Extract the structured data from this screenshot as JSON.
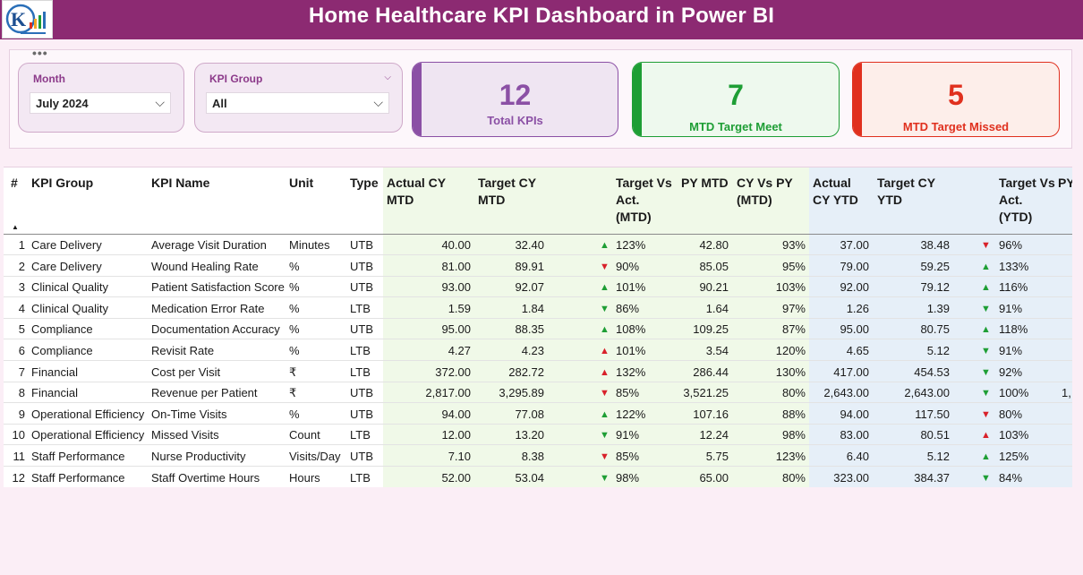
{
  "header": {
    "title": "Home Healthcare KPI Dashboard in Power BI"
  },
  "filters": {
    "month": {
      "label": "Month",
      "value": "July 2024"
    },
    "kpi_group": {
      "label": "KPI Group",
      "value": "All"
    }
  },
  "cards": [
    {
      "value": "12",
      "label": "Total KPIs",
      "color": "#8b50a5",
      "bg": "#efe5f2"
    },
    {
      "value": "7",
      "label": "MTD Target Meet",
      "color": "#1e9e35",
      "bg": "#eef9ee"
    },
    {
      "value": "5",
      "label": "MTD Target Missed",
      "color": "#e0301e",
      "bg": "#fdeeea"
    }
  ],
  "table": {
    "columns": {
      "num": "#",
      "group": "KPI Group",
      "name": "KPI Name",
      "unit": "Unit",
      "type": "Type",
      "act_mtd": "Actual CY MTD",
      "tgt_mtd": "Target CY MTD",
      "tva_mtd": "Target Vs Act. (MTD)",
      "py_mtd": "PY MTD",
      "cvp_mtd": "CY Vs PY (MTD)",
      "act_ytd": "Actual CY YTD",
      "tgt_ytd": "Target CY YTD",
      "tva_ytd": "Target Vs Act. (YTD)",
      "py_ytd": "PY"
    },
    "rows": [
      {
        "num": "1",
        "group": "Care Delivery",
        "name": "Average Visit Duration",
        "unit": "Minutes",
        "type": "UTB",
        "act_mtd": "40.00",
        "tgt_mtd": "32.40",
        "mtd_icon": "up-green",
        "tva_mtd": "123%",
        "py_mtd": "42.80",
        "cvp_mtd": "93%",
        "act_ytd": "37.00",
        "tgt_ytd": "38.48",
        "ytd_icon": "down-red",
        "tva_ytd": "96%",
        "py_ytd": ""
      },
      {
        "num": "2",
        "group": "Care Delivery",
        "name": "Wound Healing Rate",
        "unit": "%",
        "type": "UTB",
        "act_mtd": "81.00",
        "tgt_mtd": "89.91",
        "mtd_icon": "down-red",
        "tva_mtd": "90%",
        "py_mtd": "85.05",
        "cvp_mtd": "95%",
        "act_ytd": "79.00",
        "tgt_ytd": "59.25",
        "ytd_icon": "up-green",
        "tva_ytd": "133%",
        "py_ytd": ""
      },
      {
        "num": "3",
        "group": "Clinical Quality",
        "name": "Patient Satisfaction Score",
        "unit": "%",
        "type": "UTB",
        "act_mtd": "93.00",
        "tgt_mtd": "92.07",
        "mtd_icon": "up-green",
        "tva_mtd": "101%",
        "py_mtd": "90.21",
        "cvp_mtd": "103%",
        "act_ytd": "92.00",
        "tgt_ytd": "79.12",
        "ytd_icon": "up-green",
        "tva_ytd": "116%",
        "py_ytd": ""
      },
      {
        "num": "4",
        "group": "Clinical Quality",
        "name": "Medication Error Rate",
        "unit": "%",
        "type": "LTB",
        "act_mtd": "1.59",
        "tgt_mtd": "1.84",
        "mtd_icon": "down-green",
        "tva_mtd": "86%",
        "py_mtd": "1.64",
        "cvp_mtd": "97%",
        "act_ytd": "1.26",
        "tgt_ytd": "1.39",
        "ytd_icon": "down-green",
        "tva_ytd": "91%",
        "py_ytd": ""
      },
      {
        "num": "5",
        "group": "Compliance",
        "name": "Documentation Accuracy",
        "unit": "%",
        "type": "UTB",
        "act_mtd": "95.00",
        "tgt_mtd": "88.35",
        "mtd_icon": "up-green",
        "tva_mtd": "108%",
        "py_mtd": "109.25",
        "cvp_mtd": "87%",
        "act_ytd": "95.00",
        "tgt_ytd": "80.75",
        "ytd_icon": "up-green",
        "tva_ytd": "118%",
        "py_ytd": ""
      },
      {
        "num": "6",
        "group": "Compliance",
        "name": "Revisit Rate",
        "unit": "%",
        "type": "LTB",
        "act_mtd": "4.27",
        "tgt_mtd": "4.23",
        "mtd_icon": "up-red",
        "tva_mtd": "101%",
        "py_mtd": "3.54",
        "cvp_mtd": "120%",
        "act_ytd": "4.65",
        "tgt_ytd": "5.12",
        "ytd_icon": "down-green",
        "tva_ytd": "91%",
        "py_ytd": ""
      },
      {
        "num": "7",
        "group": "Financial",
        "name": "Cost per Visit",
        "unit": "₹",
        "type": "LTB",
        "act_mtd": "372.00",
        "tgt_mtd": "282.72",
        "mtd_icon": "up-red",
        "tva_mtd": "132%",
        "py_mtd": "286.44",
        "cvp_mtd": "130%",
        "act_ytd": "417.00",
        "tgt_ytd": "454.53",
        "ytd_icon": "down-green",
        "tva_ytd": "92%",
        "py_ytd": ""
      },
      {
        "num": "8",
        "group": "Financial",
        "name": "Revenue per Patient",
        "unit": "₹",
        "type": "UTB",
        "act_mtd": "2,817.00",
        "tgt_mtd": "3,295.89",
        "mtd_icon": "down-red",
        "tva_mtd": "85%",
        "py_mtd": "3,521.25",
        "cvp_mtd": "80%",
        "act_ytd": "2,643.00",
        "tgt_ytd": "2,643.00",
        "ytd_icon": "down-green",
        "tva_ytd": "100%",
        "py_ytd": "1,"
      },
      {
        "num": "9",
        "group": "Operational Efficiency",
        "name": "On-Time Visits",
        "unit": "%",
        "type": "UTB",
        "act_mtd": "94.00",
        "tgt_mtd": "77.08",
        "mtd_icon": "up-green",
        "tva_mtd": "122%",
        "py_mtd": "107.16",
        "cvp_mtd": "88%",
        "act_ytd": "94.00",
        "tgt_ytd": "117.50",
        "ytd_icon": "down-red",
        "tva_ytd": "80%",
        "py_ytd": ""
      },
      {
        "num": "10",
        "group": "Operational Efficiency",
        "name": "Missed Visits",
        "unit": "Count",
        "type": "LTB",
        "act_mtd": "12.00",
        "tgt_mtd": "13.20",
        "mtd_icon": "down-green",
        "tva_mtd": "91%",
        "py_mtd": "12.24",
        "cvp_mtd": "98%",
        "act_ytd": "83.00",
        "tgt_ytd": "80.51",
        "ytd_icon": "up-red",
        "tva_ytd": "103%",
        "py_ytd": ""
      },
      {
        "num": "11",
        "group": "Staff Performance",
        "name": "Nurse Productivity",
        "unit": "Visits/Day",
        "type": "UTB",
        "act_mtd": "7.10",
        "tgt_mtd": "8.38",
        "mtd_icon": "down-red",
        "tva_mtd": "85%",
        "py_mtd": "5.75",
        "cvp_mtd": "123%",
        "act_ytd": "6.40",
        "tgt_ytd": "5.12",
        "ytd_icon": "up-green",
        "tva_ytd": "125%",
        "py_ytd": ""
      },
      {
        "num": "12",
        "group": "Staff Performance",
        "name": "Staff Overtime Hours",
        "unit": "Hours",
        "type": "LTB",
        "act_mtd": "52.00",
        "tgt_mtd": "53.04",
        "mtd_icon": "down-green",
        "tva_mtd": "98%",
        "py_mtd": "65.00",
        "cvp_mtd": "80%",
        "act_ytd": "323.00",
        "tgt_ytd": "384.37",
        "ytd_icon": "down-green",
        "tva_ytd": "84%",
        "py_ytd": ""
      }
    ]
  },
  "colors": {
    "brand": "#8c2a72",
    "mtd_band": "#f0f9e8",
    "ytd_band": "#e6eff8",
    "up": "#1e9e35",
    "down": "#d8212a"
  }
}
